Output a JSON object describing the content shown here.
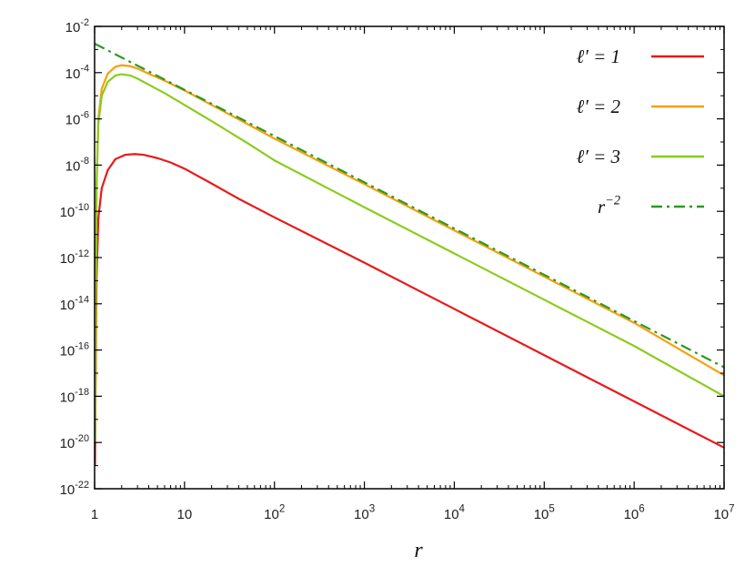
{
  "chart_data": {
    "type": "line",
    "xlabel": "r",
    "ylabel": "",
    "x_scale": "log",
    "y_scale": "log",
    "xlim": [
      1,
      10000000
    ],
    "ylim": [
      1e-22,
      0.01
    ],
    "grid": false,
    "legend_position": "top-right",
    "x_ticks": [
      {
        "value": 1,
        "base": "1",
        "exp": ""
      },
      {
        "value": 10,
        "base": "10",
        "exp": ""
      },
      {
        "value": 100,
        "base": "10",
        "exp": "2"
      },
      {
        "value": 1000,
        "base": "10",
        "exp": "3"
      },
      {
        "value": 10000,
        "base": "10",
        "exp": "4"
      },
      {
        "value": 100000,
        "base": "10",
        "exp": "5"
      },
      {
        "value": 1000000,
        "base": "10",
        "exp": "6"
      },
      {
        "value": 10000000,
        "base": "10",
        "exp": "7"
      }
    ],
    "y_ticks": [
      {
        "value": 1e-22,
        "base": "10",
        "exp": "-22"
      },
      {
        "value": 1e-20,
        "base": "10",
        "exp": "-20"
      },
      {
        "value": 1e-18,
        "base": "10",
        "exp": "-18"
      },
      {
        "value": 1e-16,
        "base": "10",
        "exp": "-16"
      },
      {
        "value": 1e-14,
        "base": "10",
        "exp": "-14"
      },
      {
        "value": 1e-12,
        "base": "10",
        "exp": "-12"
      },
      {
        "value": 1e-10,
        "base": "10",
        "exp": "-10"
      },
      {
        "value": 1e-08,
        "base": "10",
        "exp": "-8"
      },
      {
        "value": 1e-06,
        "base": "10",
        "exp": "-6"
      },
      {
        "value": 0.0001,
        "base": "10",
        "exp": "-4"
      },
      {
        "value": 0.01,
        "base": "10",
        "exp": "-2"
      }
    ],
    "series": [
      {
        "name": "ℓ′ = 1",
        "name_parts": {
          "base": "ℓ′ = 1",
          "exp": ""
        },
        "color": "#e8191c",
        "dash": "solid",
        "points": [
          [
            1.01,
            1e-21
          ],
          [
            1.05,
            1e-13
          ],
          [
            1.1,
            5e-11
          ],
          [
            1.2,
            1e-09
          ],
          [
            1.4,
            6e-09
          ],
          [
            1.7,
            1.8e-08
          ],
          [
            2.2,
            2.8e-08
          ],
          [
            2.8,
            3e-08
          ],
          [
            3.5,
            2.8e-08
          ],
          [
            5,
            2e-08
          ],
          [
            7,
            1.3e-08
          ],
          [
            10,
            7e-09
          ],
          [
            20,
            1.6e-09
          ],
          [
            40,
            3.5e-10
          ],
          [
            100,
            5.5e-11
          ],
          [
            1000,
            6e-13
          ],
          [
            10000,
            6e-15
          ],
          [
            100000,
            6e-17
          ],
          [
            1000000,
            6e-19
          ],
          [
            10000000,
            6e-21
          ]
        ]
      },
      {
        "name": "ℓ′ = 2",
        "name_parts": {
          "base": "ℓ′ = 2",
          "exp": ""
        },
        "color": "#f5a00f",
        "dash": "solid",
        "points": [
          [
            1.01,
            1e-20
          ],
          [
            1.05,
            1e-09
          ],
          [
            1.1,
            1e-06
          ],
          [
            1.2,
            2e-05
          ],
          [
            1.4,
            9e-05
          ],
          [
            1.7,
            0.00018
          ],
          [
            2.0,
            0.00021
          ],
          [
            2.5,
            0.00019
          ],
          [
            3,
            0.00015
          ],
          [
            4,
            9e-05
          ],
          [
            6,
            4.5e-05
          ],
          [
            10,
            1.7e-05
          ],
          [
            20,
            4e-06
          ],
          [
            50,
            6e-07
          ],
          [
            100,
            1.4e-07
          ],
          [
            1000,
            1.5e-09
          ],
          [
            10000,
            1.5e-11
          ],
          [
            100000,
            1.5e-13
          ],
          [
            1000000,
            1.5e-15
          ],
          [
            10000000,
            8e-18
          ]
        ]
      },
      {
        "name": "ℓ′ = 3",
        "name_parts": {
          "base": "ℓ′ = 3",
          "exp": ""
        },
        "color": "#8ccb1e",
        "dash": "solid",
        "points": [
          [
            1.01,
            1e-20
          ],
          [
            1.05,
            1e-09
          ],
          [
            1.1,
            6e-07
          ],
          [
            1.2,
            1e-05
          ],
          [
            1.4,
            4e-05
          ],
          [
            1.7,
            7.5e-05
          ],
          [
            2.0,
            8.5e-05
          ],
          [
            2.5,
            7.5e-05
          ],
          [
            3,
            5.5e-05
          ],
          [
            4,
            3e-05
          ],
          [
            6,
            1.3e-05
          ],
          [
            10,
            4e-06
          ],
          [
            20,
            8e-07
          ],
          [
            50,
            9e-08
          ],
          [
            100,
            1.6e-08
          ],
          [
            1000,
            1.5e-10
          ],
          [
            10000,
            1.5e-12
          ],
          [
            100000,
            1.5e-14
          ],
          [
            1000000,
            1.5e-16
          ],
          [
            10000000,
            1e-18
          ]
        ]
      },
      {
        "name": "r⁻²",
        "name_parts": {
          "base": "r",
          "exp": "−2"
        },
        "color": "#2a9a1e",
        "dash": "dashdot",
        "points": [
          [
            1,
            0.0018
          ],
          [
            10,
            1.8e-05
          ],
          [
            100,
            1.8e-07
          ],
          [
            1000,
            1.8e-09
          ],
          [
            10000,
            1.8e-11
          ],
          [
            100000,
            1.8e-13
          ],
          [
            1000000,
            1.8e-15
          ],
          [
            10000000,
            1.8e-17
          ]
        ]
      }
    ]
  }
}
